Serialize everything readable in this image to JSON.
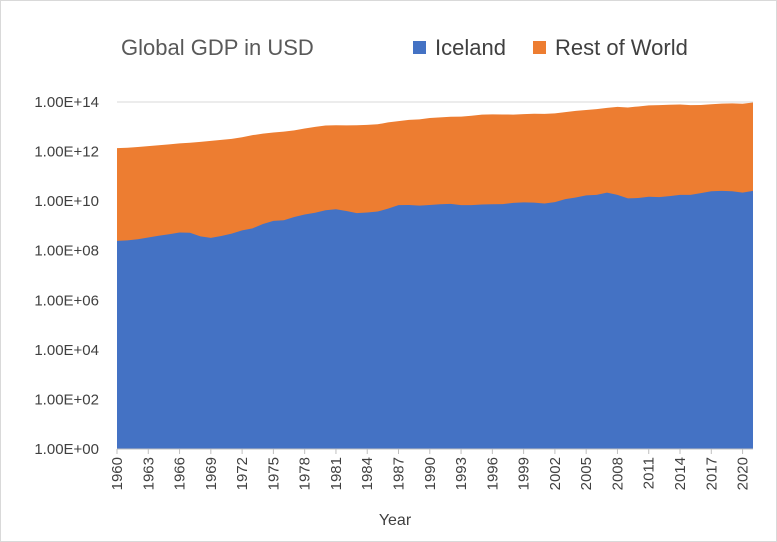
{
  "chart_data": {
    "type": "area",
    "stacked": true,
    "y_scale": "log",
    "title": "Global GDP in USD",
    "xlabel": "Year",
    "ylabel": "",
    "x_range": [
      1960,
      2021
    ],
    "ylim": [
      1,
      100000000000000.0
    ],
    "yticks": [
      {
        "value": 1,
        "label": "1.00E+00"
      },
      {
        "value": 100,
        "label": "1.00E+02"
      },
      {
        "value": 10000,
        "label": "1.00E+04"
      },
      {
        "value": 1000000,
        "label": "1.00E+06"
      },
      {
        "value": 100000000,
        "label": "1.00E+08"
      },
      {
        "value": 10000000000,
        "label": "1.00E+10"
      },
      {
        "value": 1000000000000,
        "label": "1.00E+12"
      },
      {
        "value": 100000000000000,
        "label": "1.00E+14"
      }
    ],
    "xticks": [
      1960,
      1963,
      1966,
      1969,
      1972,
      1975,
      1978,
      1981,
      1984,
      1987,
      1990,
      1993,
      1996,
      1999,
      2002,
      2005,
      2008,
      2011,
      2014,
      2017,
      2020
    ],
    "gridlines": "horizontal-top",
    "legend_position": "top-right",
    "series": [
      {
        "name": "Iceland",
        "color": "#4472c4",
        "points": [
          [
            1960,
            250000000.0
          ],
          [
            1961,
            260000000.0
          ],
          [
            1962,
            290000000.0
          ],
          [
            1963,
            340000000.0
          ],
          [
            1964,
            400000000.0
          ],
          [
            1965,
            460000000.0
          ],
          [
            1966,
            540000000.0
          ],
          [
            1967,
            530000000.0
          ],
          [
            1968,
            380000000.0
          ],
          [
            1969,
            330000000.0
          ],
          [
            1970,
            390000000.0
          ],
          [
            1971,
            490000000.0
          ],
          [
            1972,
            660000000.0
          ],
          [
            1973,
            800000000.0
          ],
          [
            1974,
            1200000000.0
          ],
          [
            1975,
            1600000000.0
          ],
          [
            1976,
            1700000000.0
          ],
          [
            1977,
            2300000000.0
          ],
          [
            1978,
            2900000000.0
          ],
          [
            1979,
            3400000000.0
          ],
          [
            1980,
            4300000000.0
          ],
          [
            1981,
            4700000000.0
          ],
          [
            1982,
            4000000000.0
          ],
          [
            1983,
            3300000000.0
          ],
          [
            1984,
            3500000000.0
          ],
          [
            1985,
            3800000000.0
          ],
          [
            1986,
            5000000000.0
          ],
          [
            1987,
            6900000000.0
          ],
          [
            1988,
            7000000000.0
          ],
          [
            1989,
            6600000000.0
          ],
          [
            1990,
            7000000000.0
          ],
          [
            1991,
            7500000000.0
          ],
          [
            1992,
            7800000000.0
          ],
          [
            1993,
            6900000000.0
          ],
          [
            1994,
            6900000000.0
          ],
          [
            1995,
            7300000000.0
          ],
          [
            1996,
            7500000000.0
          ],
          [
            1997,
            7600000000.0
          ],
          [
            1998,
            8500000000.0
          ],
          [
            1999,
            8900000000.0
          ],
          [
            2000,
            8700000000.0
          ],
          [
            2001,
            8000000000.0
          ],
          [
            2002,
            9100000000.0
          ],
          [
            2003,
            12000000000.0
          ],
          [
            2004,
            14000000000.0
          ],
          [
            2005,
            17000000000.0
          ],
          [
            2006,
            18000000000.0
          ],
          [
            2007,
            22000000000.0
          ],
          [
            2008,
            18000000000.0
          ],
          [
            2009,
            13000000000.0
          ],
          [
            2010,
            13400000000.0
          ],
          [
            2011,
            15000000000.0
          ],
          [
            2012,
            14500000000.0
          ],
          [
            2013,
            16000000000.0
          ],
          [
            2014,
            18000000000.0
          ],
          [
            2015,
            18000000000.0
          ],
          [
            2016,
            21000000000.0
          ],
          [
            2017,
            25000000000.0
          ],
          [
            2018,
            26000000000.0
          ],
          [
            2019,
            25000000000.0
          ],
          [
            2020,
            22000000000.0
          ],
          [
            2021,
            26000000000.0
          ]
        ]
      },
      {
        "name": "Rest of World",
        "color": "#ed7d31",
        "points": [
          [
            1960,
            1370000000000.0
          ],
          [
            1961,
            1420000000000.0
          ],
          [
            1962,
            1530000000000.0
          ],
          [
            1963,
            1650000000000.0
          ],
          [
            1964,
            1800000000000.0
          ],
          [
            1965,
            1960000000000.0
          ],
          [
            1966,
            2130000000000.0
          ],
          [
            1967,
            2270000000000.0
          ],
          [
            1968,
            2460000000000.0
          ],
          [
            1969,
            2710000000000.0
          ],
          [
            1970,
            2960000000000.0
          ],
          [
            1971,
            3270000000000.0
          ],
          [
            1972,
            3770000000000.0
          ],
          [
            1973,
            4590000000000.0
          ],
          [
            1974,
            5300000000000.0
          ],
          [
            1975,
            5900000000000.0
          ],
          [
            1976,
            6400000000000.0
          ],
          [
            1977,
            7200000000000.0
          ],
          [
            1978,
            8500000000000.0
          ],
          [
            1979,
            9900000000000.0
          ],
          [
            1980,
            11200000000000.0
          ],
          [
            1981,
            11500000000000.0
          ],
          [
            1982,
            11400000000000.0
          ],
          [
            1983,
            11600000000000.0
          ],
          [
            1984,
            12000000000000.0
          ],
          [
            1985,
            12600000000000.0
          ],
          [
            1986,
            15000000000000.0
          ],
          [
            1987,
            17000000000000.0
          ],
          [
            1988,
            19000000000000.0
          ],
          [
            1989,
            20000000000000.0
          ],
          [
            1990,
            22600000000000.0
          ],
          [
            1991,
            23900000000000.0
          ],
          [
            1992,
            25400000000000.0
          ],
          [
            1993,
            25800000000000.0
          ],
          [
            1994,
            27900000000000.0
          ],
          [
            1995,
            30900000000000.0
          ],
          [
            1996,
            31500000000000.0
          ],
          [
            1997,
            31400000000000.0
          ],
          [
            1998,
            31100000000000.0
          ],
          [
            1999,
            32500000000000.0
          ],
          [
            2000,
            33600000000000.0
          ],
          [
            2001,
            33300000000000.0
          ],
          [
            2002,
            34600000000000.0
          ],
          [
            2003,
            38900000000000.0
          ],
          [
            2004,
            43800000000000.0
          ],
          [
            2005,
            47400000000000.0
          ],
          [
            2006,
            51400000000000.0
          ],
          [
            2007,
            58000000000000.0
          ],
          [
            2008,
            63500000000000.0
          ],
          [
            2009,
            60300000000000.0
          ],
          [
            2010,
            66000000000000.0
          ],
          [
            2011,
            73400000000000.0
          ],
          [
            2012,
            75000000000000.0
          ],
          [
            2013,
            77300000000000.0
          ],
          [
            2014,
            79600000000000.0
          ],
          [
            2015,
            75000000000000.0
          ],
          [
            2016,
            76000000000000.0
          ],
          [
            2017,
            81000000000000.0
          ],
          [
            2018,
            86000000000000.0
          ],
          [
            2019,
            87500000000000.0
          ],
          [
            2020,
            85000000000000.0
          ],
          [
            2021,
            96000000000000.0
          ]
        ]
      }
    ]
  }
}
